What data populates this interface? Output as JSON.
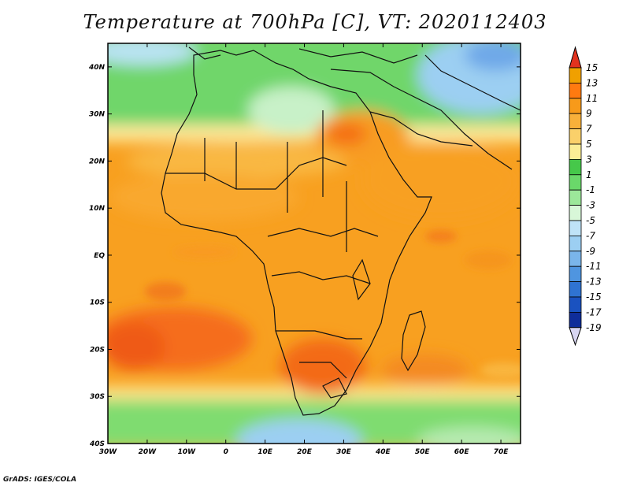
{
  "title": "Temperature at 700hPa [C], VT: 2020112403",
  "footer": "GrADS: IGES/COLA",
  "map": {
    "lon_range": [
      -30,
      75
    ],
    "lat_range": [
      -40,
      45
    ],
    "lon_ticks": [
      "30W",
      "20W",
      "10W",
      "0",
      "10E",
      "20E",
      "30E",
      "40E",
      "50E",
      "60E",
      "70E"
    ],
    "lat_ticks": [
      "40N",
      "30N",
      "20N",
      "10N",
      "EQ",
      "10S",
      "20S",
      "30S",
      "40S"
    ]
  },
  "colorbar": {
    "labels": [
      "15",
      "13",
      "11",
      "9",
      "7",
      "5",
      "3",
      "1",
      "-1",
      "-3",
      "-5",
      "-7",
      "-9",
      "-11",
      "-13",
      "-15",
      "-17",
      "-19"
    ],
    "colors": [
      "#f0a000",
      "#ff7a10",
      "#f79a1a",
      "#f8b03a",
      "#fad06a",
      "#fbee96",
      "#46c84a",
      "#6ad86a",
      "#9ce89a",
      "#d8f7d8",
      "#bfe3f7",
      "#9ccff2",
      "#7ab5ea",
      "#4f95e0",
      "#2f73d2",
      "#1a52c0",
      "#0f2d9a"
    ],
    "top_arrow_color": "#e2321e",
    "bottom_arrow_color": "#d8d6f2"
  }
}
